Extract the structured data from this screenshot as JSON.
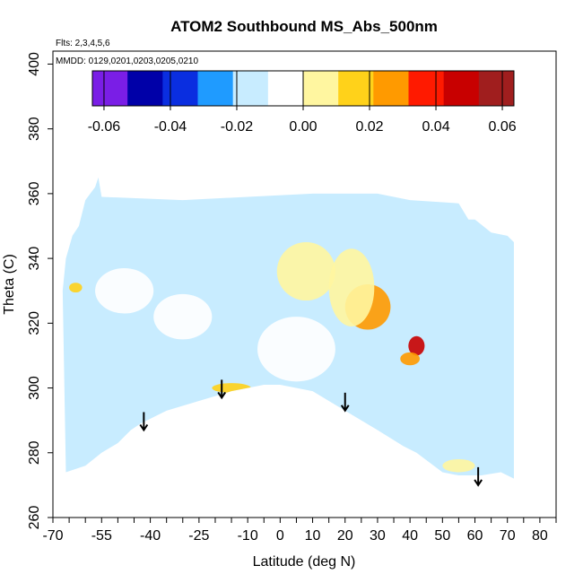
{
  "chart_data": {
    "type": "heatmap",
    "title": "ATOM2 Southbound MS_Abs_500nm",
    "subtitle_flights": "Flts: 2,3,4,5,6",
    "subtitle_dates": "MMDD: 0129,0201,0203,0205,0210",
    "xlabel": "Latitude (deg N)",
    "ylabel": "Theta (C)",
    "xlim": [
      -70,
      85
    ],
    "ylim": [
      260,
      404
    ],
    "x_ticks_minor": [
      -70,
      -65,
      -60,
      -55,
      -50,
      -45,
      -40,
      -35,
      -30,
      -25,
      -20,
      -15,
      -10,
      -5,
      0,
      5,
      10,
      15,
      20,
      25,
      30,
      35,
      40,
      45,
      50,
      55,
      60,
      65,
      70,
      75,
      80,
      85
    ],
    "x_tick_labels": [
      "-70",
      "-55",
      "-40",
      "-25",
      "-10",
      "0",
      "10",
      "20",
      "30",
      "40",
      "50",
      "60",
      "70",
      "80"
    ],
    "x_tick_label_values": [
      -70,
      -55,
      -40,
      -25,
      -10,
      0,
      10,
      20,
      30,
      40,
      50,
      60,
      70,
      80
    ],
    "y_ticks": [
      260,
      280,
      300,
      320,
      340,
      360,
      380,
      400
    ],
    "y_tick_labels": [
      "260",
      "280",
      "300",
      "320",
      "340",
      "360",
      "380",
      "400"
    ],
    "colorbar": {
      "range": [
        -0.0635,
        0.0635
      ],
      "ticks": [
        -0.06,
        -0.04,
        -0.02,
        0.0,
        0.02,
        0.04,
        0.06
      ],
      "tick_labels": [
        "-0.06",
        "-0.04",
        "-0.02",
        "0.00",
        "0.02",
        "0.04",
        "0.06"
      ],
      "colors": [
        "#7a1ee6",
        "#0000a8",
        "#0a2ee0",
        "#1f9bff",
        "#c8ecff",
        "#ffffff",
        "#fff6a0",
        "#ffd21a",
        "#ff9a00",
        "#ff1a00",
        "#c80000",
        "#a01e1e"
      ]
    },
    "field": {
      "background_value": -0.012,
      "data_region_top": [
        [
          -67,
          330
        ],
        [
          -66,
          340
        ],
        [
          -64,
          347
        ],
        [
          -62,
          350
        ],
        [
          -60,
          358
        ],
        [
          -57,
          362
        ],
        [
          -56,
          365
        ],
        [
          -55,
          359
        ],
        [
          -30,
          358
        ],
        [
          -10,
          359
        ],
        [
          10,
          360
        ],
        [
          30,
          360
        ],
        [
          40,
          358
        ],
        [
          55,
          357
        ],
        [
          58,
          352
        ],
        [
          60,
          352
        ],
        [
          65,
          348
        ],
        [
          70,
          347
        ],
        [
          72,
          345
        ]
      ],
      "data_region_bottom": [
        [
          72,
          272
        ],
        [
          68,
          274
        ],
        [
          62,
          273
        ],
        [
          55,
          273
        ],
        [
          50,
          274
        ],
        [
          42,
          280
        ],
        [
          38,
          282
        ],
        [
          30,
          287
        ],
        [
          20,
          293
        ],
        [
          10,
          299
        ],
        [
          0,
          301
        ],
        [
          -5,
          301
        ],
        [
          -15,
          299
        ],
        [
          -25,
          296
        ],
        [
          -35,
          293
        ],
        [
          -43,
          289
        ],
        [
          -46,
          287
        ],
        [
          -50,
          283
        ],
        [
          -55,
          280
        ],
        [
          -60,
          276
        ],
        [
          -66,
          274
        ]
      ],
      "features": [
        {
          "lat": 27,
          "theta": 325,
          "value": 0.023,
          "width": 14,
          "height": 14
        },
        {
          "lat": 42,
          "theta": 313,
          "value": 0.043,
          "width": 5,
          "height": 6
        },
        {
          "lat": 40,
          "theta": 309,
          "value": 0.027,
          "width": 6,
          "height": 4
        },
        {
          "lat": 8,
          "theta": 336,
          "value": 0.006,
          "width": 18,
          "height": 18
        },
        {
          "lat": -15,
          "theta": 300,
          "value": 0.014,
          "width": 12,
          "height": 3
        },
        {
          "lat": 22,
          "theta": 331,
          "value": 0.004,
          "width": 14,
          "height": 24
        },
        {
          "lat": -48,
          "theta": 330,
          "value": -0.002,
          "width": 18,
          "height": 14
        },
        {
          "lat": 5,
          "theta": 312,
          "value": -0.002,
          "width": 24,
          "height": 20
        },
        {
          "lat": -30,
          "theta": 322,
          "value": -0.006,
          "width": 18,
          "height": 14
        },
        {
          "lat": -63,
          "theta": 331,
          "value": 0.012,
          "width": 4,
          "height": 3
        },
        {
          "lat": 50,
          "theta": 300,
          "value": -0.02,
          "width": 10,
          "height": 20
        },
        {
          "lat": 62,
          "theta": 294,
          "value": -0.013,
          "width": 8,
          "height": 10
        },
        {
          "lat": 55,
          "theta": 276,
          "value": 0.008,
          "width": 10,
          "height": 4
        }
      ]
    },
    "arrows": [
      {
        "lat": -42,
        "theta": 287
      },
      {
        "lat": -18,
        "theta": 297
      },
      {
        "lat": 20,
        "theta": 293
      },
      {
        "lat": 61,
        "theta": 270
      }
    ]
  }
}
